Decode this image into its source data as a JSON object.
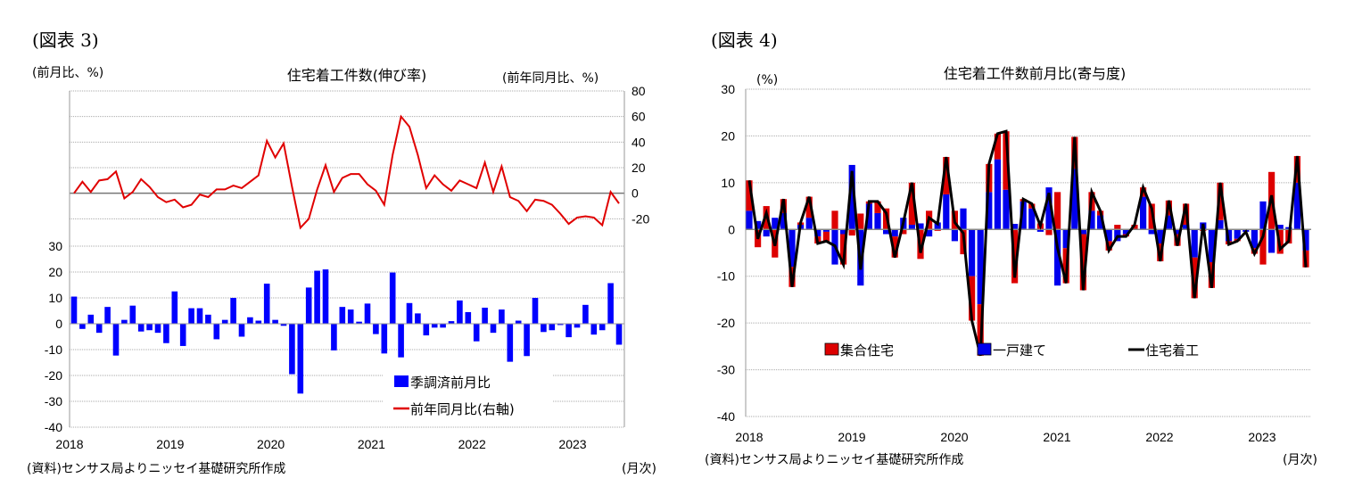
{
  "chart_data": [
    {
      "type": "bar+line",
      "figure_label": "(図表 3)",
      "title": "住宅着工件数(伸び率)",
      "ylabel_left": "(前月比、%)",
      "ylabel_right": "(前年同月比、%)",
      "xlabel": "(月次)",
      "source": "(資料)センサス局よりニッセイ基礎研究所作成",
      "ylim_left": [
        -40,
        90
      ],
      "yticks_left": [
        "30",
        "20",
        "10",
        "0",
        "-10",
        "-20",
        "-30",
        "-40"
      ],
      "ylim_right": [
        -183,
        80
      ],
      "yticks_right": [
        "80",
        "60",
        "40",
        "20",
        "0",
        "-20"
      ],
      "xtick_labels": [
        "2018",
        "2019",
        "2020",
        "2021",
        "2022",
        "2023"
      ],
      "start": "2018-01",
      "legend": [
        "季調済前月比",
        "前年同月比(右軸)"
      ],
      "legend_placement": "bottom-center",
      "series": [
        {
          "name": "季調済前月比",
          "axis": "left",
          "kind": "bar",
          "color": "#0000ff",
          "values": [
            10.5,
            -2,
            3.5,
            -3.5,
            6.5,
            -12.3,
            1.5,
            7,
            -3,
            -2.5,
            -3.5,
            -7.5,
            12.5,
            -8.6,
            6,
            6,
            3.5,
            -6,
            1.5,
            10,
            -5,
            2.5,
            1.2,
            15.5,
            1.5,
            -0.8,
            -19.5,
            -27,
            14,
            20.5,
            21,
            -10.3,
            6.5,
            5.5,
            0.8,
            7.8,
            -4,
            -11.5,
            19.8,
            -13,
            8,
            4,
            -4.5,
            -1.5,
            -1.5,
            1,
            9,
            4.5,
            -6.8,
            6.2,
            -3.5,
            5.5,
            -14.7,
            1.2,
            -12.5,
            10,
            -3.2,
            -2.5,
            -0.5,
            -5.2,
            -1.5,
            7.3,
            -4.2,
            -2.5,
            15.7,
            -8.1
          ]
        },
        {
          "name": "前年同月比(右軸)",
          "axis": "right",
          "kind": "line",
          "color": "#e00000",
          "values": [
            0,
            9,
            1,
            10,
            11,
            17,
            -4,
            1,
            11,
            5,
            -3,
            -7,
            -5,
            -11,
            -9,
            -1,
            -3,
            3,
            3,
            6,
            4,
            9,
            14,
            41,
            28,
            39,
            5,
            -27,
            -20,
            3,
            22,
            1,
            12,
            15,
            15,
            7,
            2,
            -9,
            30,
            60,
            52,
            30,
            4,
            14,
            7,
            2,
            10,
            7,
            4,
            24,
            1,
            21,
            -3,
            -6,
            -14,
            -5,
            -6,
            -9,
            -16,
            -24,
            -19,
            -18,
            -19,
            -25,
            1,
            -8
          ]
        }
      ]
    },
    {
      "type": "stacked-bar+line",
      "figure_label": "(図表 4)",
      "title": "住宅着工件数前月比(寄与度)",
      "ylabel": "(%)",
      "xlabel": "(月次)",
      "source": "(資料)センサス局よりニッセイ基礎研究所作成",
      "ylim": [
        -40,
        30
      ],
      "yticks": [
        "30",
        "20",
        "10",
        "0",
        "-10",
        "-20",
        "-30",
        "-40"
      ],
      "xtick_labels": [
        "2018",
        "2019",
        "2020",
        "2021",
        "2022",
        "2023"
      ],
      "start": "2018-01",
      "legend": [
        "集合住宅",
        "一戸建て",
        "住宅着工"
      ],
      "legend_placement": "bottom-center",
      "series": [
        {
          "name": "一戸建て",
          "kind": "bar",
          "color": "#0000ee",
          "values": [
            4,
            1.8,
            -1.5,
            2.5,
            3.5,
            -8,
            1,
            2.5,
            -1.5,
            -0.5,
            -7.5,
            -1,
            13.8,
            -12,
            5.5,
            3.5,
            -1,
            -1.5,
            2.5,
            1,
            1.3,
            -1.5,
            1.5,
            7.5,
            -2.5,
            4.5,
            -10,
            -16,
            8,
            15,
            8.5,
            1.2,
            6,
            4.5,
            -0.5,
            9,
            -12,
            -4,
            13,
            -1,
            4,
            3,
            -2.5,
            -2.5,
            -1,
            0,
            7,
            -1,
            -3,
            3,
            -1,
            1,
            -6,
            1.5,
            -7,
            2,
            -2.5,
            -2,
            -0.5,
            -4,
            6,
            -5,
            1,
            0.5,
            10,
            -4.5
          ]
        },
        {
          "name": "集合住宅",
          "kind": "bar",
          "color": "#dd0000",
          "values": [
            6.5,
            -3.8,
            5,
            -6,
            3,
            -4.3,
            0.5,
            4.5,
            -1.5,
            -2,
            4,
            -6.5,
            -1.3,
            3.4,
            0.5,
            2.5,
            4.5,
            -4.5,
            -1,
            9,
            -6.3,
            4,
            -0.3,
            8,
            4,
            -5.3,
            -9.5,
            -11,
            6,
            5.5,
            12.5,
            -11.5,
            0.5,
            1,
            1.3,
            -1.2,
            8,
            -7.5,
            6.8,
            -12,
            4,
            1,
            -2,
            1,
            -0.5,
            1,
            2,
            5.5,
            -3.8,
            3.2,
            -2.5,
            4.5,
            -8.7,
            -0.3,
            -5.5,
            8,
            -0.7,
            -0.5,
            0,
            -1.2,
            -7.5,
            12.3,
            -5.2,
            -3,
            5.7,
            -3.6
          ]
        },
        {
          "name": "住宅着工",
          "kind": "line",
          "color": "#000000",
          "values": [
            10.5,
            -2,
            3.5,
            -3.5,
            6.5,
            -12.3,
            1.5,
            7,
            -3,
            -2.5,
            -3.5,
            -7.5,
            12.5,
            -8.6,
            6,
            6,
            3.5,
            -6,
            1.5,
            10,
            -5,
            2.5,
            1.2,
            15.5,
            1.5,
            -0.8,
            -19.5,
            -27,
            14,
            20.5,
            21,
            -10.3,
            6.5,
            5.5,
            0.8,
            7.8,
            -4,
            -11.5,
            19.8,
            -13,
            8,
            4,
            -4.5,
            -1.5,
            -1.5,
            1,
            9,
            4.5,
            -6.8,
            6.2,
            -3.5,
            5.5,
            -14.7,
            1.2,
            -12.5,
            10,
            -3.2,
            -2.5,
            -0.5,
            -5.2,
            -1.5,
            7.3,
            -4.2,
            -2.5,
            15.7,
            -8.1
          ]
        }
      ]
    }
  ]
}
